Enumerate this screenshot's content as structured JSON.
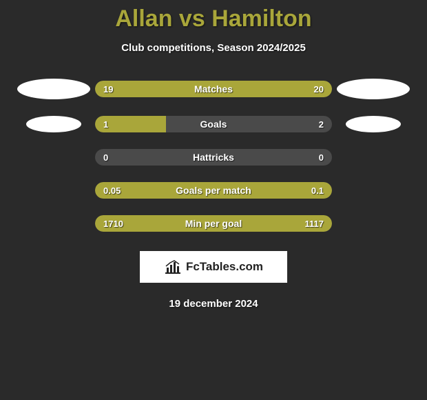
{
  "title": "Allan vs Hamilton",
  "subtitle": "Club competitions, Season 2024/2025",
  "colors": {
    "bg": "#2a2a2a",
    "accent": "#a9a63a",
    "bar_bg": "#4a4a4a",
    "text": "#ffffff",
    "ellipse": "#ffffff",
    "logo_bg": "#ffffff",
    "logo_text": "#222222"
  },
  "stats": [
    {
      "label": "Matches",
      "left_val": "19",
      "right_val": "20",
      "left_pct": 48.7,
      "right_pct": 51.3,
      "ellipse_left": "large",
      "ellipse_right": "large"
    },
    {
      "label": "Goals",
      "left_val": "1",
      "right_val": "2",
      "left_pct": 30,
      "right_pct": 0,
      "ellipse_left": "small",
      "ellipse_right": "small"
    },
    {
      "label": "Hattricks",
      "left_val": "0",
      "right_val": "0",
      "left_pct": 0,
      "right_pct": 0,
      "ellipse_left": "none",
      "ellipse_right": "none"
    },
    {
      "label": "Goals per match",
      "left_val": "0.05",
      "right_val": "0.1",
      "left_pct": 100,
      "right_pct": 0,
      "ellipse_left": "none",
      "ellipse_right": "none"
    },
    {
      "label": "Min per goal",
      "left_val": "1710",
      "right_val": "1117",
      "left_pct": 100,
      "right_pct": 0,
      "ellipse_left": "none",
      "ellipse_right": "none"
    }
  ],
  "logo_text": "FcTables.com",
  "date": "19 december 2024"
}
